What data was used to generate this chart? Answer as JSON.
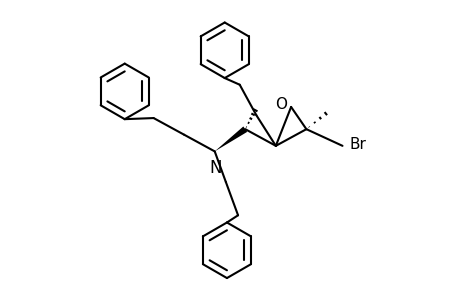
{
  "bg_color": "#ffffff",
  "line_color": "#000000",
  "line_width": 1.5,
  "figsize": [
    4.6,
    3.0
  ],
  "dpi": 100,
  "Br_label": "Br",
  "O_label": "O",
  "N_label": "N"
}
